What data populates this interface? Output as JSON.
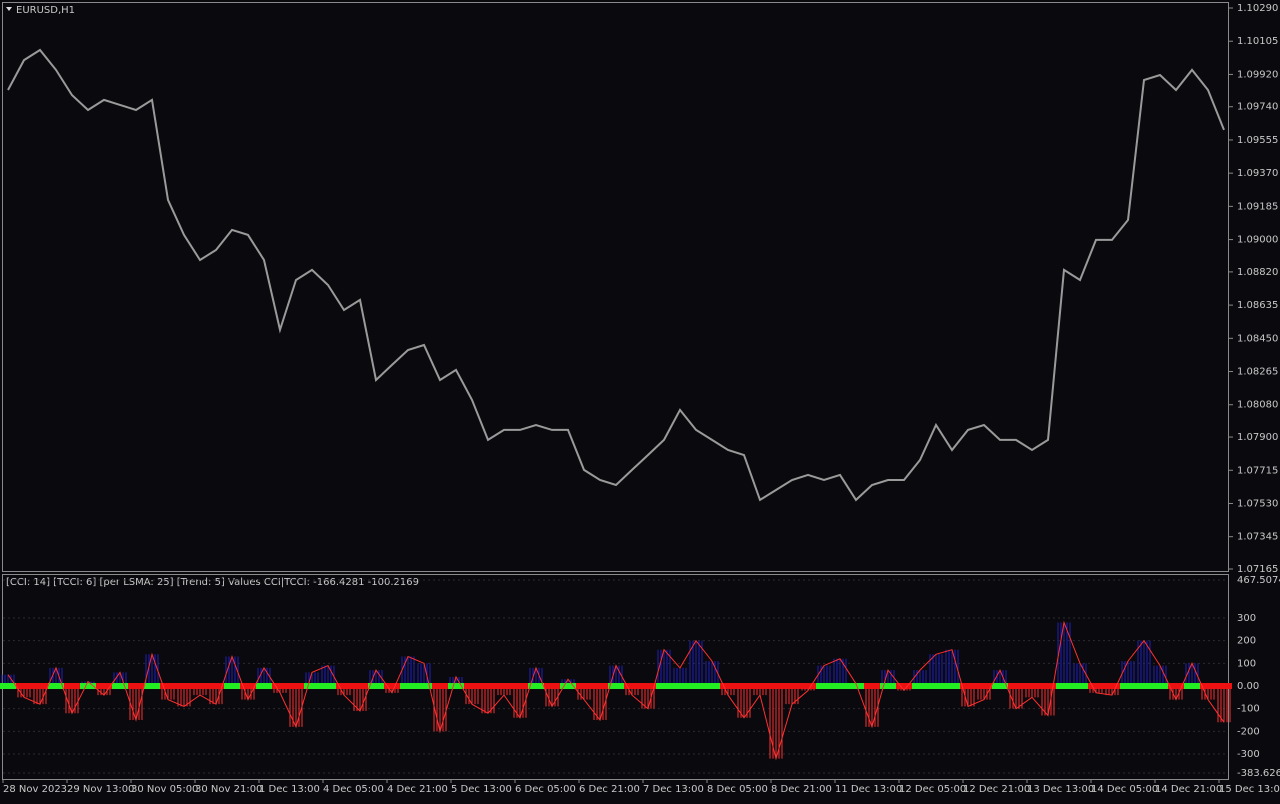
{
  "chart_data": [
    {
      "type": "line",
      "title": "EURUSD,H1",
      "color": "#9a9a9a",
      "values": [
        1.09833,
        1.1,
        1.10056,
        1.09945,
        1.09805,
        1.09722,
        1.09778,
        1.0975,
        1.09722,
        1.09778,
        1.09221,
        1.09026,
        1.08886,
        1.08942,
        1.09054,
        1.09026,
        1.08886,
        1.08497,
        1.08775,
        1.08831,
        1.08747,
        1.08608,
        1.08664,
        1.08218,
        1.08302,
        1.08385,
        1.08413,
        1.08218,
        1.08274,
        1.08107,
        1.07884,
        1.0794,
        1.0794,
        1.07967,
        1.0794,
        1.0794,
        1.07717,
        1.07661,
        1.07633,
        1.07717,
        1.078,
        1.07884,
        1.08051,
        1.0794,
        1.07884,
        1.07828,
        1.078,
        1.0755,
        1.07605,
        1.07661,
        1.07689,
        1.07661,
        1.07689,
        1.0755,
        1.07633,
        1.07661,
        1.07661,
        1.07772,
        1.07967,
        1.07828,
        1.0794,
        1.07967,
        1.07884,
        1.07884,
        1.07828,
        1.07884,
        1.08831,
        1.08775,
        1.08998,
        1.08998,
        1.09109,
        1.09889,
        1.09917,
        1.09833,
        1.09945,
        1.09833,
        1.09611
      ],
      "ylim": [
        1.07165,
        1.1029
      ],
      "yticks": [
        {
          "value": 1.1029,
          "label": "1.10290"
        },
        {
          "value": 1.10105,
          "label": "1.10105"
        },
        {
          "value": 1.0992,
          "label": "1.09920"
        },
        {
          "value": 1.0974,
          "label": "1.09740"
        },
        {
          "value": 1.09555,
          "label": "1.09555"
        },
        {
          "value": 1.0937,
          "label": "1.09370"
        },
        {
          "value": 1.09185,
          "label": "1.09185"
        },
        {
          "value": 1.09,
          "label": "1.09000"
        },
        {
          "value": 1.0882,
          "label": "1.08820"
        },
        {
          "value": 1.08635,
          "label": "1.08635"
        },
        {
          "value": 1.0845,
          "label": "1.08450"
        },
        {
          "value": 1.08265,
          "label": "1.08265"
        },
        {
          "value": 1.0808,
          "label": "1.08080"
        },
        {
          "value": 1.079,
          "label": "1.07900"
        },
        {
          "value": 1.07715,
          "label": "1.07715"
        },
        {
          "value": 1.0753,
          "label": "1.07530"
        },
        {
          "value": 1.07345,
          "label": "1.07345"
        },
        {
          "value": 1.07165,
          "label": "1.07165"
        }
      ]
    },
    {
      "type": "cci",
      "title": "[CCI: 14] [TCCI: 6] [per LSMA: 25] [Trend: 5] Values CCI|TCCI: -166.4281 -100.2169",
      "color": "#ff3030",
      "positive_color": "#2020c0",
      "values": [
        50,
        -50,
        -80,
        80,
        -120,
        20,
        -40,
        60,
        -150,
        140,
        -60,
        -90,
        -40,
        -80,
        130,
        -60,
        80,
        -30,
        -180,
        60,
        90,
        -40,
        -110,
        70,
        -30,
        130,
        100,
        -200,
        40,
        -80,
        -120,
        -40,
        -140,
        80,
        -90,
        30,
        -60,
        -150,
        90,
        -40,
        -100,
        160,
        80,
        200,
        110,
        -40,
        -140,
        -40,
        -320,
        -80,
        -20,
        90,
        120,
        10,
        -180,
        70,
        -20,
        70,
        140,
        160,
        -90,
        -60,
        70,
        -100,
        -50,
        -130,
        280,
        100,
        -30,
        -40,
        110,
        200,
        90,
        -60,
        100,
        -60,
        -160
      ],
      "ylim": [
        -383.6264,
        467.5074
      ],
      "yticks": [
        467.5074,
        300,
        200,
        100,
        {
          "value": 0,
          "label": "0.00"
        },
        -100,
        -200,
        -300,
        -383.6264
      ],
      "grid": true,
      "xtick_labels": [
        "28 Nov 2023",
        "29 Nov 13:00",
        "30 Nov 05:00",
        "30 Nov 21:00",
        "1 Dec 13:00",
        "4 Dec 05:00",
        "4 Dec 21:00",
        "5 Dec 13:00",
        "6 Dec 05:00",
        "6 Dec 21:00",
        "7 Dec 13:00",
        "8 Dec 05:00",
        "8 Dec 21:00",
        "11 Dec 13:00",
        "12 Dec 05:00",
        "12 Dec 21:00",
        "13 Dec 13:00",
        "14 Dec 05:00",
        "14 Dec 21:00",
        "15 Dec 13:00"
      ]
    }
  ]
}
